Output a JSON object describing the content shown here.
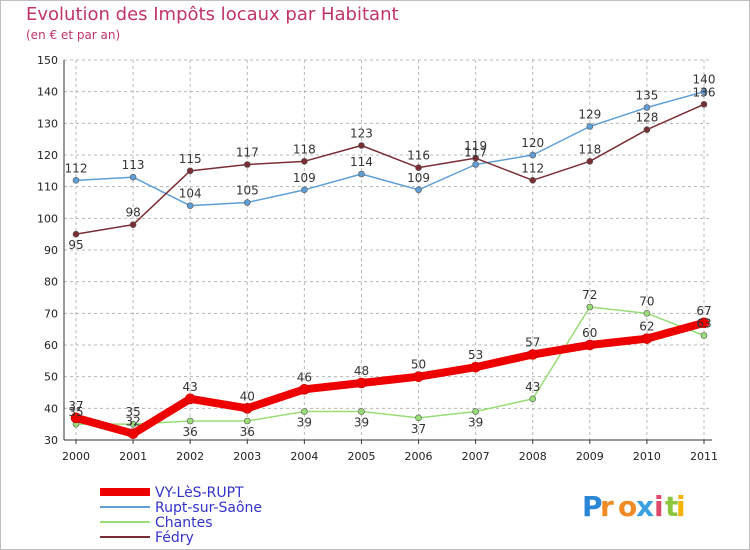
{
  "title": "Evolution des Impôts locaux par Habitant",
  "subtitle": "(en € et par an)",
  "logo_text": "Proxiti",
  "colors": {
    "title": "#c0336b",
    "grid": "#b8b8b8",
    "axis": "#333333"
  },
  "chart_data": {
    "type": "line",
    "x": [
      "2000",
      "2001",
      "2002",
      "2003",
      "2004",
      "2005",
      "2006",
      "2007",
      "2008",
      "2009",
      "2010",
      "2011"
    ],
    "ylim": [
      30,
      150
    ],
    "yticks": [
      "30",
      "40",
      "50",
      "60",
      "70",
      "80",
      "90",
      "100",
      "110",
      "120",
      "130",
      "140",
      "150"
    ],
    "grid": "horizontal dashed",
    "legend_position": "bottom-left",
    "series": [
      {
        "name": "VY-LèS-RUPT",
        "color": "#ee0000",
        "values": [
          37,
          32,
          43,
          40,
          46,
          48,
          50,
          53,
          57,
          60,
          62,
          67
        ],
        "labels": [
          "37",
          "32",
          "43",
          "40",
          "46",
          "48",
          "50",
          "53",
          "57",
          "60",
          "62",
          "67"
        ]
      },
      {
        "name": "Rupt-sur-Saône",
        "color": "#5f9fd6",
        "values": [
          112,
          113,
          104,
          105,
          109,
          114,
          109,
          117,
          120,
          129,
          135,
          140
        ],
        "labels": [
          "112",
          "113",
          "104",
          "105",
          "109",
          "114",
          "109",
          "117",
          "120",
          "129",
          "135",
          "140"
        ]
      },
      {
        "name": "Chantes",
        "color": "#99dd77",
        "values": [
          35,
          35,
          36,
          36,
          39,
          39,
          37,
          39,
          43,
          72,
          70,
          63
        ],
        "labels": [
          "35",
          "35",
          "36",
          "36",
          "39",
          "39",
          "37",
          "39",
          "43",
          "72",
          "70",
          "63"
        ]
      },
      {
        "name": "Fédry",
        "color": "#7a2e33",
        "values": [
          95,
          98,
          115,
          117,
          118,
          123,
          116,
          119,
          112,
          118,
          128,
          136
        ],
        "labels": [
          "95",
          "98",
          "115",
          "117",
          "118",
          "123",
          "116",
          "119",
          "112",
          "118",
          "128",
          "136"
        ]
      }
    ]
  }
}
